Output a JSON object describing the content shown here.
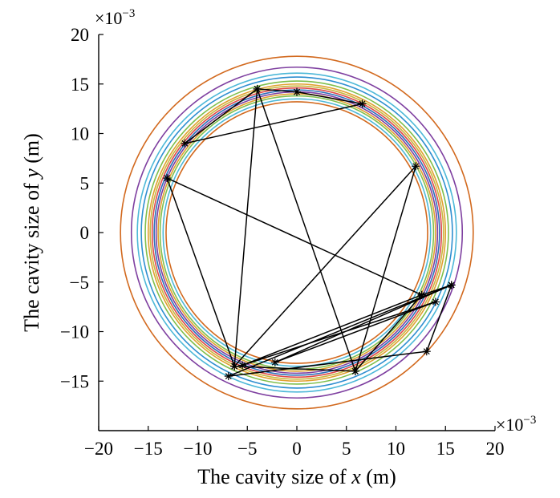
{
  "chart_data": {
    "type": "scatter",
    "xlabel": {
      "prefix": "The cavity size of ",
      "var": "x",
      "suffix": " (m)"
    },
    "ylabel": {
      "prefix": "The cavity size of ",
      "var": "y",
      "suffix": " (m)"
    },
    "x_multiplier": {
      "base": "×10",
      "exp": "−3"
    },
    "y_multiplier": {
      "base": "×10",
      "exp": "−3"
    },
    "xlim": [
      -20,
      20
    ],
    "ylim": [
      -20,
      20
    ],
    "xticks": [
      -20,
      -15,
      -10,
      -5,
      0,
      5,
      10,
      15,
      20
    ],
    "yticks": [
      -15,
      -10,
      -5,
      0,
      5,
      10,
      15,
      20
    ],
    "xtick_labels": [
      "−20",
      "−15",
      "−10",
      "−5",
      "0",
      "5",
      "10",
      "15",
      "20"
    ],
    "ytick_labels": [
      "−15",
      "−10",
      "−5",
      "0",
      "5",
      "10",
      "15",
      "20"
    ],
    "grid": false,
    "circles": [
      {
        "radius": 17.8,
        "color": "#d2691e"
      },
      {
        "radius": 16.7,
        "color": "#7e3fa0"
      },
      {
        "radius": 16.1,
        "color": "#4db8d8"
      },
      {
        "radius": 15.7,
        "color": "#2f8fd0"
      },
      {
        "radius": 15.3,
        "color": "#7fbf4d"
      },
      {
        "radius": 15.0,
        "color": "#e0a030"
      },
      {
        "radius": 14.8,
        "color": "#c9b840"
      },
      {
        "radius": 14.6,
        "color": "#e04a4a"
      },
      {
        "radius": 14.4,
        "color": "#2d6fb8"
      },
      {
        "radius": 14.2,
        "color": "#7e3fa0"
      },
      {
        "radius": 14.0,
        "color": "#e0a030"
      },
      {
        "radius": 13.8,
        "color": "#7fbf4d"
      },
      {
        "radius": 13.5,
        "color": "#4db8d8"
      },
      {
        "radius": 13.2,
        "color": "#d2691e"
      }
    ],
    "path_color": "#000000",
    "path": [
      [
        0.0,
        14.2
      ],
      [
        6.6,
        13.0
      ],
      [
        -11.3,
        9.0
      ],
      [
        -4.0,
        14.5
      ],
      [
        5.9,
        -14.0
      ],
      [
        12.0,
        6.7
      ],
      [
        -6.3,
        -13.5
      ],
      [
        -13.1,
        5.5
      ],
      [
        12.6,
        -6.3
      ],
      [
        -5.5,
        -13.4
      ],
      [
        14.0,
        -7.0
      ],
      [
        -2.2,
        -13.1
      ],
      [
        15.6,
        -5.3
      ],
      [
        -6.9,
        -14.5
      ],
      [
        13.1,
        -12.0
      ],
      [
        15.6,
        -5.3
      ],
      [
        12.6,
        -6.3
      ],
      [
        5.9,
        -14.0
      ],
      [
        -6.3,
        -13.5
      ],
      [
        -4.0,
        14.5
      ],
      [
        0.0,
        14.2
      ]
    ]
  }
}
